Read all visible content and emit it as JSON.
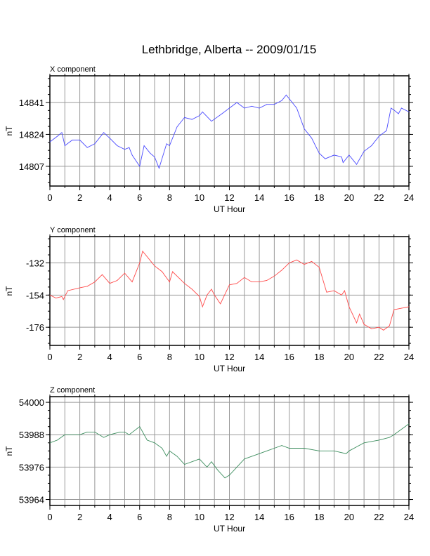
{
  "title": "Lethbridge, Alberta -- 2009/01/15",
  "chart_data": [
    {
      "type": "line",
      "panel_title": "X component",
      "xlabel": "UT Hour",
      "ylabel": "nT",
      "xlim": [
        0,
        24
      ],
      "ylim": [
        14796.5,
        14855.2
      ],
      "xticks": [
        0,
        2,
        4,
        6,
        8,
        10,
        12,
        14,
        16,
        18,
        20,
        22,
        24
      ],
      "yticks": [
        14807,
        14824,
        14841
      ],
      "grid": true,
      "color": "#4a4aff",
      "x": [
        0,
        0.5,
        0.8,
        1,
        1.5,
        2,
        2.5,
        3,
        3.6,
        4,
        4.5,
        5,
        5.3,
        5.5,
        6,
        6.3,
        6.7,
        7,
        7.3,
        7.8,
        8,
        8.5,
        9,
        9.5,
        10,
        10.2,
        10.8,
        11.5,
        12,
        12.5,
        13,
        13.5,
        14,
        14.5,
        15,
        15.5,
        15.8,
        16.2,
        16.5,
        17,
        17.5,
        18,
        18.4,
        19,
        19.5,
        19.6,
        20,
        20.5,
        21,
        21.5,
        22,
        22.5,
        22.8,
        23,
        23.3,
        23.5,
        24
      ],
      "y": [
        14820,
        14823,
        14825,
        14818,
        14821,
        14821,
        14817,
        14819,
        14825,
        14822,
        14818,
        14816,
        14817,
        14813,
        14807,
        14818,
        14814,
        14812,
        14806,
        14819,
        14818,
        14828,
        14833,
        14832,
        14834,
        14836,
        14831,
        14835,
        14838,
        14841,
        14838,
        14839,
        14838,
        14840,
        14840,
        14842,
        14845,
        14841,
        14838,
        14827,
        14822,
        14814,
        14811,
        14813,
        14812,
        14809,
        14813,
        14808,
        14815,
        14818,
        14823,
        14826,
        14838,
        14837,
        14835,
        14838,
        14836
      ]
    },
    {
      "type": "line",
      "panel_title": "Y component",
      "xlabel": "UT Hour",
      "ylabel": "nT",
      "xlim": [
        0,
        24
      ],
      "ylim": [
        -188.4,
        -114
      ],
      "xticks": [
        0,
        2,
        4,
        6,
        8,
        10,
        12,
        14,
        16,
        18,
        20,
        22,
        24
      ],
      "yticks": [
        -176,
        -154,
        -132
      ],
      "grid": true,
      "color": "#ff4a4a",
      "x": [
        0,
        0.4,
        0.8,
        0.9,
        1.2,
        2,
        2.5,
        3,
        3.5,
        4,
        4.5,
        5,
        5.5,
        6,
        6.2,
        7,
        7.5,
        8,
        8.2,
        9,
        9.5,
        10,
        10.2,
        10.5,
        10.8,
        11,
        11.4,
        12,
        12.5,
        13,
        13.5,
        14,
        14.5,
        15,
        15.5,
        16,
        16.5,
        17,
        17.5,
        18,
        18.5,
        19,
        19.5,
        19.7,
        20,
        20.5,
        20.7,
        21,
        21.5,
        22,
        22.3,
        22.7,
        23,
        23.5,
        24
      ],
      "y": [
        -154,
        -156,
        -155,
        -157,
        -151,
        -149,
        -148,
        -145,
        -140,
        -146,
        -144,
        -139,
        -145,
        -132,
        -124,
        -134,
        -138,
        -145,
        -138,
        -146,
        -150,
        -155,
        -162,
        -154,
        -150,
        -154,
        -160,
        -147,
        -146,
        -142,
        -145,
        -145,
        -144,
        -141,
        -137,
        -132,
        -130,
        -133,
        -131,
        -135,
        -152,
        -151,
        -154,
        -151,
        -162,
        -173,
        -167,
        -174,
        -177,
        -176,
        -178,
        -175,
        -164,
        -163,
        -162
      ]
    },
    {
      "type": "line",
      "panel_title": "Z component",
      "xlabel": "UT Hour",
      "ylabel": "nT",
      "xlim": [
        0,
        24
      ],
      "ylim": [
        53961.8,
        54002.1
      ],
      "xticks": [
        0,
        2,
        4,
        6,
        8,
        10,
        12,
        14,
        16,
        18,
        20,
        22,
        24
      ],
      "yticks": [
        53964,
        53976,
        53988,
        54000
      ],
      "grid": true,
      "color": "#3f8f60",
      "x": [
        0,
        0.5,
        1,
        2,
        2.5,
        3,
        3.6,
        4,
        4.7,
        5,
        5.3,
        6,
        6.5,
        7,
        7.5,
        7.8,
        8,
        8.5,
        9,
        9.5,
        10,
        10.5,
        10.8,
        11.2,
        11.7,
        12,
        12.5,
        13,
        14,
        15,
        15.5,
        16,
        17,
        18,
        19,
        19.8,
        20,
        21,
        22,
        22.7,
        23,
        24
      ],
      "y": [
        53985,
        53986,
        53988,
        53988,
        53989,
        53989,
        53987,
        53988,
        53989,
        53989,
        53988,
        53991,
        53986,
        53985,
        53983,
        53980,
        53982,
        53980,
        53977,
        53978,
        53979,
        53976,
        53978,
        53975,
        53972,
        53973,
        53976,
        53979,
        53981,
        53983,
        53984,
        53983,
        53983,
        53982,
        53982,
        53981,
        53982,
        53985,
        53986,
        53987,
        53988,
        53992
      ]
    }
  ]
}
